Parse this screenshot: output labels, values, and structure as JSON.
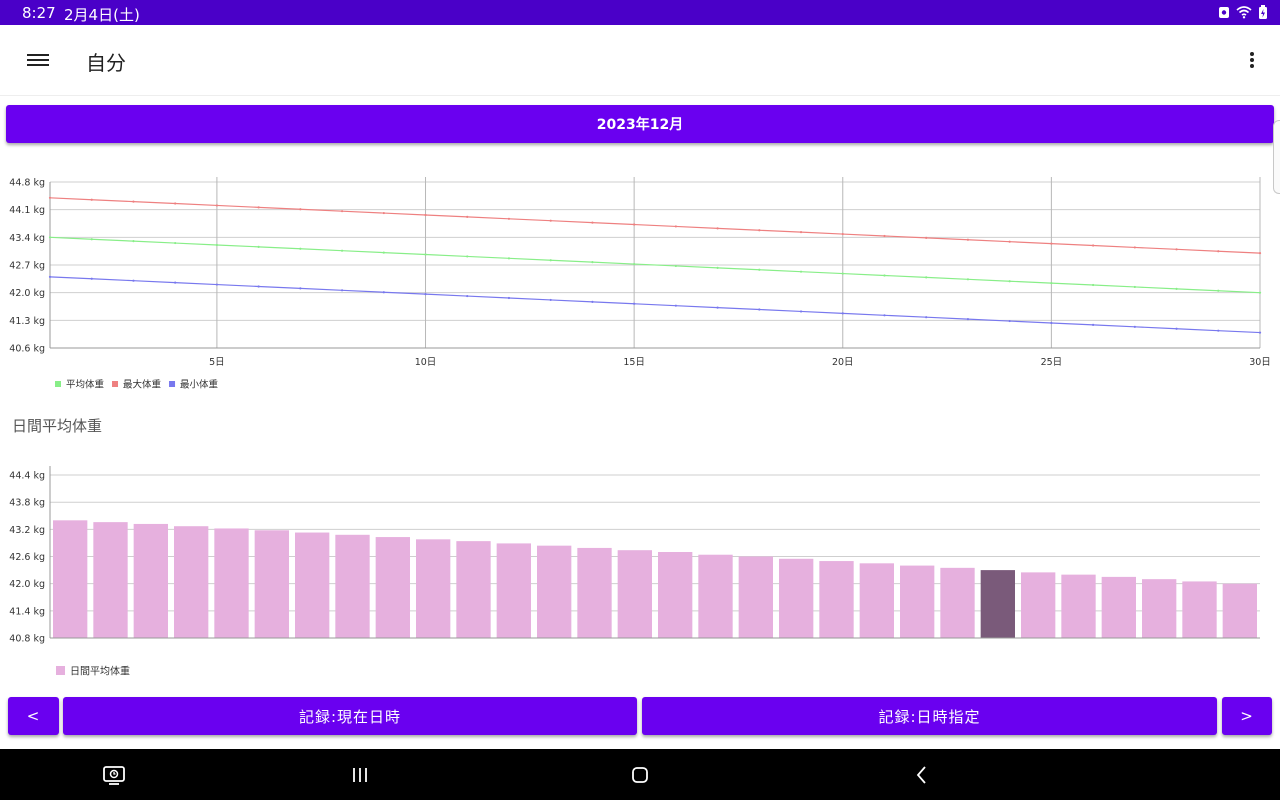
{
  "status": {
    "time": "8:27",
    "date": "2月4日(土)"
  },
  "app": {
    "title": "自分"
  },
  "month_label": "2023年12月",
  "section_title": "日間平均体重",
  "buttons": {
    "prev": "<",
    "record_now": "記録:現在日時",
    "record_specified": "記録:日時指定",
    "next": ">"
  },
  "colors": {
    "status_bar": "#4a00c8",
    "accent": "#6a00f0",
    "avg_line": "#88ee88",
    "max_line": "#ee8080",
    "min_line": "#7878ee",
    "bar": "#e6b0de",
    "bar_selected": "#7a5a7a"
  },
  "icons": {
    "menu": "hamburger-menu-icon",
    "more": "more-vert-icon",
    "nav_recent": "screen-time-icon",
    "nav_apps": "recent-apps-icon",
    "nav_home": "home-icon",
    "nav_back": "back-icon"
  },
  "chart_data": [
    {
      "type": "line",
      "xlim": [
        1,
        30
      ],
      "ylim": [
        40.6,
        44.8
      ],
      "x_ticks": [
        5,
        10,
        15,
        20,
        25,
        30
      ],
      "x_tick_labels": [
        "5日",
        "10日",
        "15日",
        "20日",
        "25日",
        "30日"
      ],
      "y_ticks": [
        40.6,
        41.3,
        42.0,
        42.7,
        43.4,
        44.1,
        44.8
      ],
      "y_tick_labels": [
        "40.6 kg",
        "41.3 kg",
        "42.0 kg",
        "42.7 kg",
        "43.4 kg",
        "44.1 kg",
        "44.8 kg"
      ],
      "grid": true,
      "legend": "bottom-left",
      "series": [
        {
          "name": "平均体重",
          "color": "#88ee88",
          "start": 43.4,
          "end": 42.0
        },
        {
          "name": "最大体重",
          "color": "#ee8080",
          "start": 44.4,
          "end": 43.0
        },
        {
          "name": "最小体重",
          "color": "#7878ee",
          "start": 42.4,
          "end": 40.99
        }
      ]
    },
    {
      "type": "bar",
      "ylim": [
        40.8,
        44.6
      ],
      "y_ticks": [
        40.8,
        41.4,
        42.0,
        42.6,
        43.2,
        43.8,
        44.4
      ],
      "y_tick_labels": [
        "40.8 kg",
        "41.4 kg",
        "42.0 kg",
        "42.6 kg",
        "43.2 kg",
        "43.8 kg",
        "44.4 kg"
      ],
      "grid": true,
      "legend": "bottom-left",
      "selected_index": 23,
      "series": [
        {
          "name": "日間平均体重",
          "color": "#e6b0de",
          "values": [
            43.4,
            43.36,
            43.32,
            43.27,
            43.22,
            43.18,
            43.13,
            43.08,
            43.03,
            42.98,
            42.94,
            42.89,
            42.84,
            42.79,
            42.74,
            42.7,
            42.64,
            42.6,
            42.55,
            42.5,
            42.45,
            42.4,
            42.35,
            42.3,
            42.25,
            42.2,
            42.15,
            42.1,
            42.05,
            42.0
          ]
        }
      ]
    }
  ]
}
